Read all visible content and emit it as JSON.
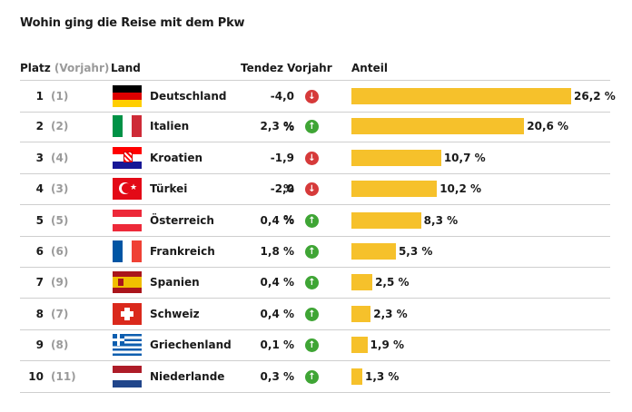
{
  "title": "Wohin ging die Reise mit dem Pkw",
  "headers": {
    "rank": "Platz",
    "prev": "(Vorjahr)",
    "country": "Land",
    "trend": "Tendez Vorjahr",
    "share": "Anteil"
  },
  "colors": {
    "bar": "#f6c12b",
    "up": "#3fa535",
    "down": "#d63a3a"
  },
  "rows": [
    {
      "rank": "1",
      "prev": "(1)",
      "country": "Deutschland",
      "flag": "germany-flag",
      "trend": "-4,0 %",
      "dir": "down",
      "share": 26.2,
      "share_label": "26,2 %"
    },
    {
      "rank": "2",
      "prev": "(2)",
      "country": "Italien",
      "flag": "italy-flag",
      "trend": "2,3 %",
      "dir": "up",
      "share": 20.6,
      "share_label": "20,6 %"
    },
    {
      "rank": "3",
      "prev": "(4)",
      "country": "Kroatien",
      "flag": "croatia-flag",
      "trend": "-1,9 %",
      "dir": "down",
      "share": 10.7,
      "share_label": "10,7 %"
    },
    {
      "rank": "4",
      "prev": "(3)",
      "country": "Türkei",
      "flag": "turkey-flag",
      "trend": "-2,0 %",
      "dir": "down",
      "share": 10.2,
      "share_label": "10,2 %"
    },
    {
      "rank": "5",
      "prev": "(5)",
      "country": "Österreich",
      "flag": "austria-flag",
      "trend": "0,4 %",
      "dir": "up",
      "share": 8.3,
      "share_label": "8,3 %"
    },
    {
      "rank": "6",
      "prev": "(6)",
      "country": "Frankreich",
      "flag": "france-flag",
      "trend": "1,8 %",
      "dir": "up",
      "share": 5.3,
      "share_label": "5,3 %"
    },
    {
      "rank": "7",
      "prev": "(9)",
      "country": "Spanien",
      "flag": "spain-flag",
      "trend": "0,4 %",
      "dir": "up",
      "share": 2.5,
      "share_label": "2,5 %"
    },
    {
      "rank": "8",
      "prev": "(7)",
      "country": "Schweiz",
      "flag": "switzerland-flag",
      "trend": "0,4 %",
      "dir": "up",
      "share": 2.3,
      "share_label": "2,3 %"
    },
    {
      "rank": "9",
      "prev": "(8)",
      "country": "Griechenland",
      "flag": "greece-flag",
      "trend": "0,1 %",
      "dir": "up",
      "share": 1.9,
      "share_label": "1,9 %"
    },
    {
      "rank": "10",
      "prev": "(11)",
      "country": "Niederlande",
      "flag": "netherlands-flag",
      "trend": "0,3 %",
      "dir": "up",
      "share": 1.3,
      "share_label": "1,3 %"
    }
  ],
  "chart_data": {
    "type": "bar",
    "title": "Wohin ging die Reise mit dem Pkw",
    "categories": [
      "Deutschland",
      "Italien",
      "Kroatien",
      "Türkei",
      "Österreich",
      "Frankreich",
      "Spanien",
      "Schweiz",
      "Griechenland",
      "Niederlande"
    ],
    "series": [
      {
        "name": "Anteil",
        "values": [
          26.2,
          20.6,
          10.7,
          10.2,
          8.3,
          5.3,
          2.5,
          2.3,
          1.9,
          1.3
        ]
      },
      {
        "name": "Tendez Vorjahr",
        "values": [
          -4.0,
          2.3,
          -1.9,
          -2.0,
          0.4,
          1.8,
          0.4,
          0.4,
          0.1,
          0.3
        ]
      }
    ],
    "xlabel": "",
    "ylabel": ""
  }
}
